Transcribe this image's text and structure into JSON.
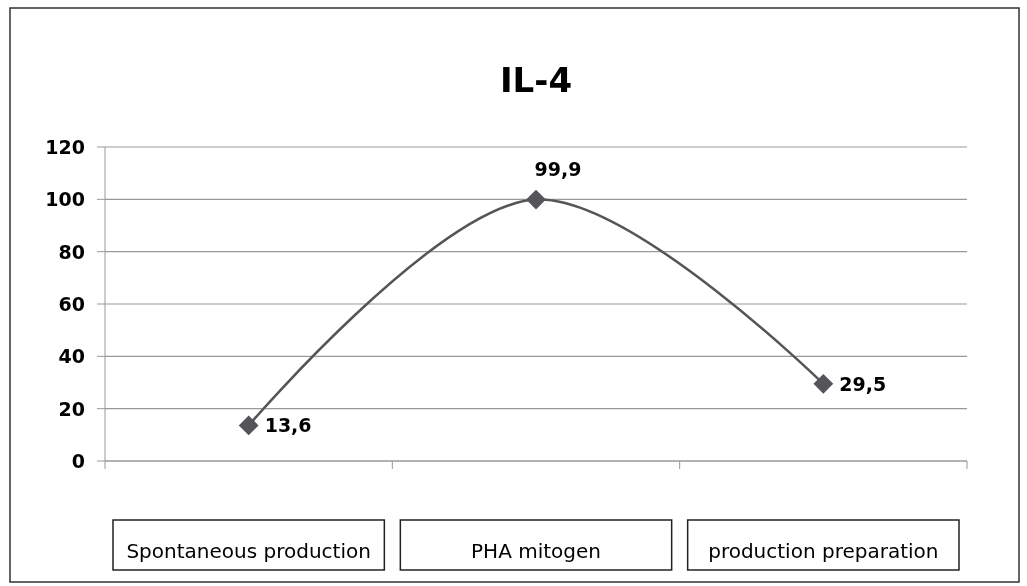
{
  "chart_data": {
    "type": "line",
    "title": "IL-4",
    "categories": [
      "Spontaneous production",
      "PHA mitogen",
      "production preparation"
    ],
    "series": [
      {
        "color": "#555559",
        "values": [
          13.6,
          99.9,
          29.5
        ]
      }
    ],
    "value_labels": [
      "13,6",
      "99,9",
      "29,5"
    ],
    "ylim": [
      0,
      120
    ],
    "yticks": [
      0,
      20,
      40,
      60,
      80,
      100,
      120
    ],
    "grid": "y",
    "marker": "diamond"
  }
}
